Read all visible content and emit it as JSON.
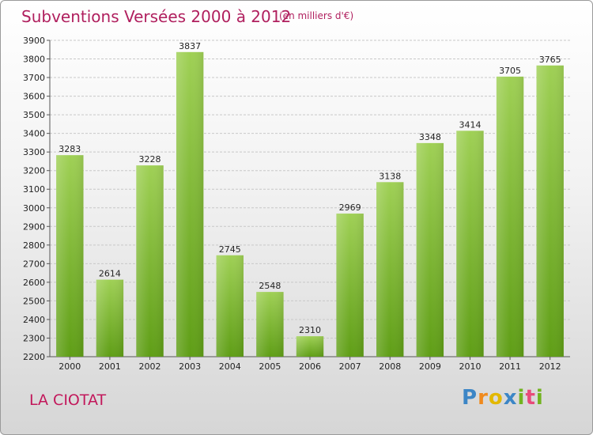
{
  "header": {
    "title": "Subventions Versées 2000 à 2012",
    "subtitle": "(en milliers d'€)"
  },
  "footer": {
    "commune": "LA CIOTAT",
    "logo": [
      "P",
      "r",
      "o",
      "x",
      "i",
      "t",
      "i"
    ]
  },
  "colors": {
    "bar_top": "#9fd055",
    "bar_bottom": "#5f9e16",
    "grid": "#c8c8c8",
    "title": "#b01f5e"
  },
  "chart_data": {
    "type": "bar",
    "title": "Subventions Versées 2000 à 2012",
    "subtitle": "(en milliers d'€)",
    "categories": [
      "2000",
      "2001",
      "2002",
      "2003",
      "2004",
      "2005",
      "2006",
      "2007",
      "2008",
      "2009",
      "2010",
      "2011",
      "2012"
    ],
    "values": [
      3283,
      2614,
      3228,
      3837,
      2745,
      2548,
      2310,
      2969,
      3138,
      3348,
      3414,
      3705,
      3765
    ],
    "xlabel": "",
    "ylabel": "",
    "ylim": [
      2200,
      3900
    ],
    "yticks": [
      2200,
      2300,
      2400,
      2500,
      2600,
      2700,
      2800,
      2900,
      3000,
      3100,
      3200,
      3300,
      3400,
      3500,
      3600,
      3700,
      3800,
      3900
    ],
    "grid": true,
    "data_labels": true
  }
}
